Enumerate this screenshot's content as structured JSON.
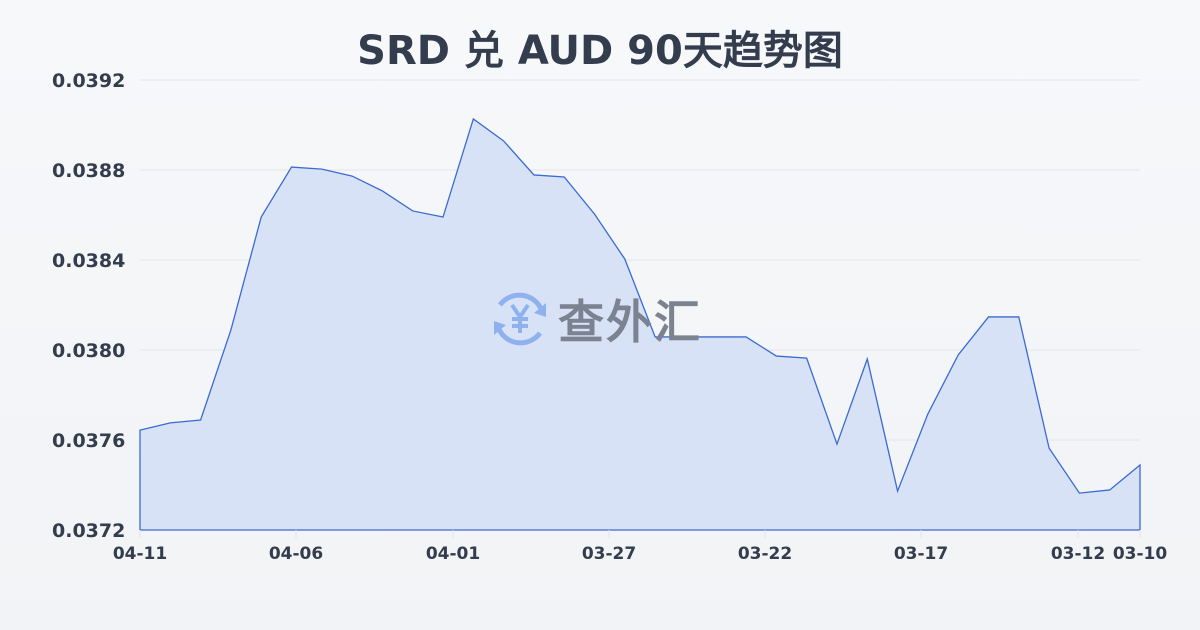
{
  "chart_data": {
    "type": "area",
    "title": "SRD 兑 AUD 90天趋势图",
    "xlabel": "",
    "ylabel": "",
    "x_tick_labels": [
      "04-11",
      "04-06",
      "04-01",
      "03-27",
      "03-22",
      "03-17",
      "03-12",
      "03-10"
    ],
    "y_tick_labels": [
      "0.0392",
      "0.0388",
      "0.0384",
      "0.0380",
      "0.0376",
      "0.0372"
    ],
    "ylim": [
      0.0372,
      0.0392
    ],
    "grid": true,
    "values": [
      0.037644,
      0.037676,
      0.037689,
      0.038089,
      0.038591,
      0.038813,
      0.038804,
      0.038773,
      0.038707,
      0.038618,
      0.038591,
      0.039027,
      0.038929,
      0.038778,
      0.038769,
      0.038604,
      0.038404,
      0.038058,
      0.038058,
      0.038058,
      0.038058,
      0.037973,
      0.037964,
      0.037582,
      0.03796,
      0.037373,
      0.037716,
      0.037978,
      0.038147,
      0.038147,
      0.037564,
      0.037364,
      0.037378,
      0.037489
    ],
    "colors": {
      "line": "#3a6bd1",
      "fill": "#d6e0f5",
      "grid": "#e3e6ea"
    }
  },
  "watermark": {
    "text": "查外汇",
    "icon": "yen-exchange-icon"
  }
}
